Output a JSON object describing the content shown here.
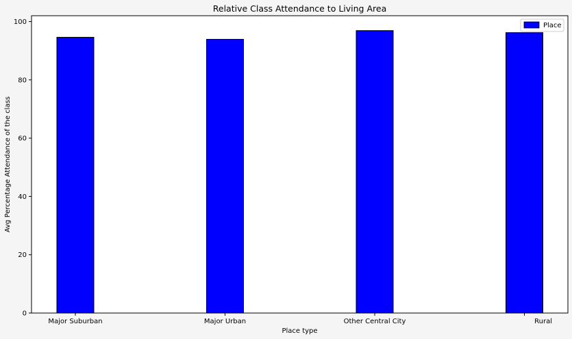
{
  "chart_data": {
    "type": "bar",
    "title": "Relative Class Attendance to Living Area",
    "xlabel": "Place type",
    "ylabel": "Avg Percentage Attendance of  the class",
    "categories": [
      "Major Suburban",
      "Major Urban",
      "Other Central City",
      "Rural"
    ],
    "series": [
      {
        "name": "Place",
        "values": [
          94.6,
          93.9,
          96.9,
          96.2
        ],
        "color": "#0000ff"
      }
    ],
    "ylim": [
      0,
      102
    ],
    "yticks": [
      0,
      20,
      40,
      60,
      80,
      100
    ],
    "grid": false,
    "legend_position": "top-right"
  }
}
